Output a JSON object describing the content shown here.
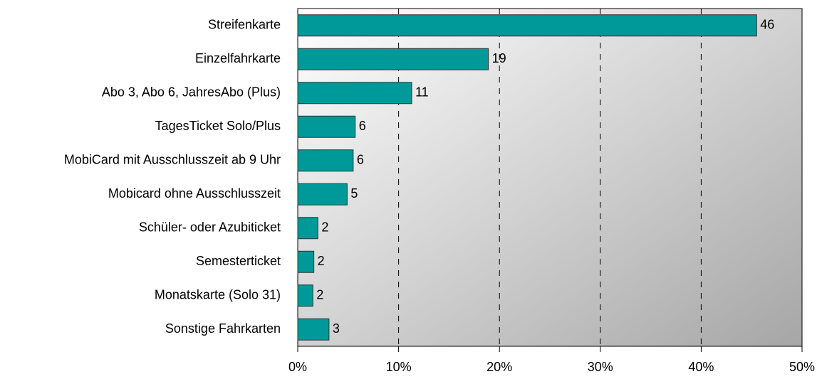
{
  "chart_data": {
    "type": "bar",
    "orientation": "horizontal",
    "categories": [
      "Streifenkarte",
      "Einzelfahrkarte",
      "Abo 3, Abo 6, JahresAbo (Plus)",
      "TagesTicket Solo/Plus",
      "MobiCard mit Ausschlusszeit ab 9 Uhr",
      "Mobicard ohne Ausschlusszeit",
      "Schüler- oder Azubiticket",
      "Semesterticket",
      "Monatskarte (Solo 31)",
      "Sonstige Fahrkarten"
    ],
    "values": [
      45.5,
      18.9,
      11.3,
      5.7,
      5.5,
      4.9,
      2.0,
      1.6,
      1.5,
      3.1
    ],
    "value_labels": [
      "46",
      "19",
      "11",
      "6",
      "6",
      "5",
      "2",
      "2",
      "2",
      "3"
    ],
    "color": "#009999",
    "xlim": [
      0,
      50
    ],
    "xticks": [
      {
        "value": 0,
        "label": "0%"
      },
      {
        "value": 10,
        "label": "10%"
      },
      {
        "value": 20,
        "label": "20%"
      },
      {
        "value": 30,
        "label": "30%"
      },
      {
        "value": 40,
        "label": "40%"
      },
      {
        "value": 50,
        "label": "50%"
      }
    ],
    "grid": true
  }
}
